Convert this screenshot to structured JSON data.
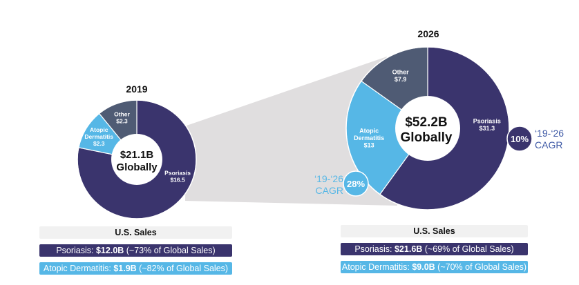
{
  "chart_data": [
    {
      "type": "pie",
      "variant": "donut",
      "title": "2019",
      "center_label": [
        "$21.1B",
        "Globally"
      ],
      "total": 21.1,
      "unit": "$B",
      "slices": [
        {
          "name": "Psoriasis",
          "value": 16.5,
          "label": "$16.5",
          "color": "#3a346d"
        },
        {
          "name": "Atopic Dermatitis",
          "value": 2.3,
          "label": "$2.3",
          "color": "#56b7e6"
        },
        {
          "name": "Other",
          "value": 2.3,
          "label": "$2.3",
          "color": "#4f5b74"
        }
      ]
    },
    {
      "type": "pie",
      "variant": "donut",
      "title": "2026",
      "center_label": [
        "$52.2B",
        "Globally"
      ],
      "total": 52.2,
      "unit": "$B",
      "slices": [
        {
          "name": "Psoriasis",
          "value": 31.3,
          "label": "$31.3",
          "color": "#3a346d"
        },
        {
          "name": "Atopic Dermatitis",
          "value": 13,
          "label": "$13",
          "color": "#56b7e6"
        },
        {
          "name": "Other",
          "value": 7.9,
          "label": "$7.9",
          "color": "#4f5b74"
        }
      ]
    }
  ],
  "cagr": {
    "psoriasis": {
      "value": "10%",
      "line1": "‘19-‘26",
      "line2": "CAGR",
      "color": "#3a346d",
      "text_color": "#3f5aa6"
    },
    "atopic": {
      "value": "28%",
      "line1": "‘19-‘26",
      "line2": "CAGR",
      "color": "#56b7e6",
      "text_color": "#56b7e6"
    }
  },
  "us_sales": {
    "y2019": {
      "header": "U.S. Sales",
      "psoriasis": {
        "prefix": "Psoriasis: ",
        "amount": "$12.0B",
        "suffix": " (~73% of Global Sales)"
      },
      "atopic": {
        "prefix": "Atopic Dermatitis: ",
        "amount": "$1.9B",
        "suffix": " (~82% of Global Sales)"
      }
    },
    "y2026": {
      "header": "U.S. Sales",
      "psoriasis": {
        "prefix": "Psoriasis: ",
        "amount": "$21.6B",
        "suffix": " (~69% of Global Sales)"
      },
      "atopic": {
        "prefix": "Atopic Dermatitis: ",
        "amount": "$9.0B",
        "suffix": " (~70% of Global Sales)"
      }
    }
  },
  "colors": {
    "funnel": "#e0dedf",
    "psoriasis": "#3a346d",
    "atopic": "#56b7e6",
    "other": "#4f5b74"
  }
}
